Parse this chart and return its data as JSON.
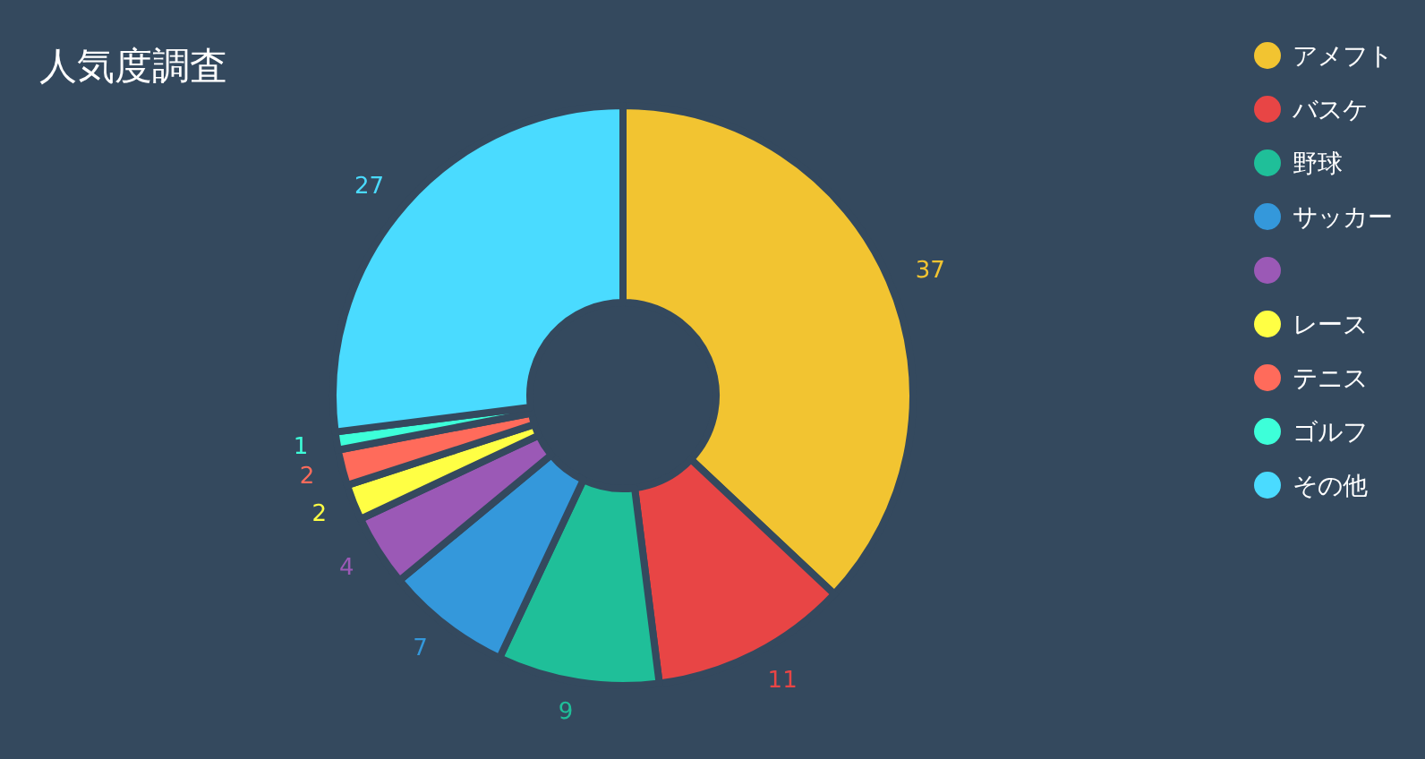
{
  "chart_data": {
    "type": "donut",
    "title": "人気度調査",
    "categories": [
      "アメフト",
      "バスケ",
      "野球",
      "サッカー",
      null,
      "レース",
      "テニス",
      "ゴルフ",
      "その他"
    ],
    "values": [
      37,
      11,
      9,
      7,
      4,
      2,
      2,
      1,
      27
    ],
    "colors": [
      "#f2c431",
      "#e84545",
      "#1fbf99",
      "#3498db",
      "#9b59b6",
      "#ffff44",
      "#ff6b5b",
      "#3dffd9",
      "#4adbff"
    ],
    "data_labels": true,
    "legend": "top right"
  }
}
